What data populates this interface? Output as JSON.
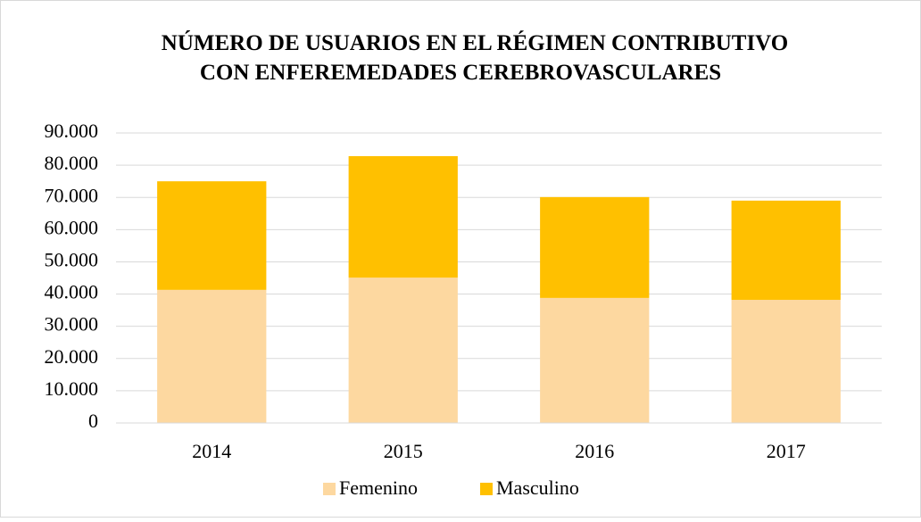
{
  "chart_data": {
    "type": "stacked_bar",
    "title": [
      "NÚMERO DE USUARIOS EN EL RÉGIMEN CONTRIBUTIVO",
      "CON ENFEREMEDADES CEREBROVASCULARES"
    ],
    "categories": [
      "2014",
      "2015",
      "2016",
      "2017"
    ],
    "series": [
      {
        "name": "Femenino",
        "color": "#fdd8a0",
        "values": [
          41300,
          45100,
          38800,
          38200
        ]
      },
      {
        "name": "Masculino",
        "color": "#ffc000",
        "values": [
          33700,
          37700,
          31300,
          30800
        ]
      }
    ],
    "ylim": [
      0,
      90000
    ],
    "yticks": [
      0,
      {
        "value": 10000,
        "label": "10.000"
      },
      {
        "value": 20000,
        "label": "20.000"
      },
      {
        "value": 30000,
        "label": "30.000"
      },
      {
        "value": 40000,
        "label": "40.000"
      },
      {
        "value": 50000,
        "label": "50.000"
      },
      {
        "value": 60000,
        "label": "60.000"
      },
      {
        "value": 70000,
        "label": "70.000"
      },
      {
        "value": 80000,
        "label": "80.000"
      },
      {
        "value": 90000,
        "label": "90.000"
      }
    ],
    "grid": true,
    "legend": "bottom"
  }
}
